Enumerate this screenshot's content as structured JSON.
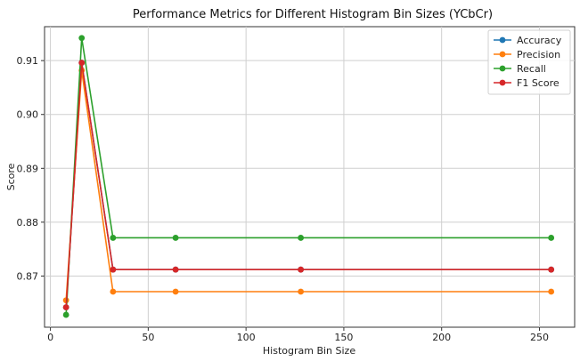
{
  "chart_data": {
    "type": "line",
    "title": "Performance Metrics for Different Histogram Bin Sizes (YCbCr)",
    "xlabel": "Histogram Bin Size",
    "ylabel": "Score",
    "x": [
      8,
      16,
      32,
      64,
      128,
      256
    ],
    "xlim": [
      -3,
      268
    ],
    "ylim": [
      0.8605,
      0.9163
    ],
    "xticks": [
      0,
      50,
      100,
      150,
      200,
      250
    ],
    "yticks": [
      0.87,
      0.88,
      0.89,
      0.9,
      0.91
    ],
    "ytick_labels": [
      "0.87",
      "0.88",
      "0.89",
      "0.90",
      "0.91"
    ],
    "grid": true,
    "legend_position": "top-right",
    "series": [
      {
        "name": "Accuracy",
        "color": "#1f77b4",
        "values": [
          0.8642,
          0.9096,
          0.8712,
          0.8712,
          0.8712,
          0.8712
        ]
      },
      {
        "name": "Precision",
        "color": "#ff7f0e",
        "values": [
          0.8655,
          0.9082,
          0.8671,
          0.8671,
          0.8671,
          0.8671
        ]
      },
      {
        "name": "Recall",
        "color": "#2ca02c",
        "values": [
          0.8628,
          0.9142,
          0.8771,
          0.8771,
          0.8771,
          0.8771
        ]
      },
      {
        "name": "F1 Score",
        "color": "#d62728",
        "values": [
          0.8642,
          0.9096,
          0.8712,
          0.8712,
          0.8712,
          0.8712
        ]
      }
    ]
  }
}
